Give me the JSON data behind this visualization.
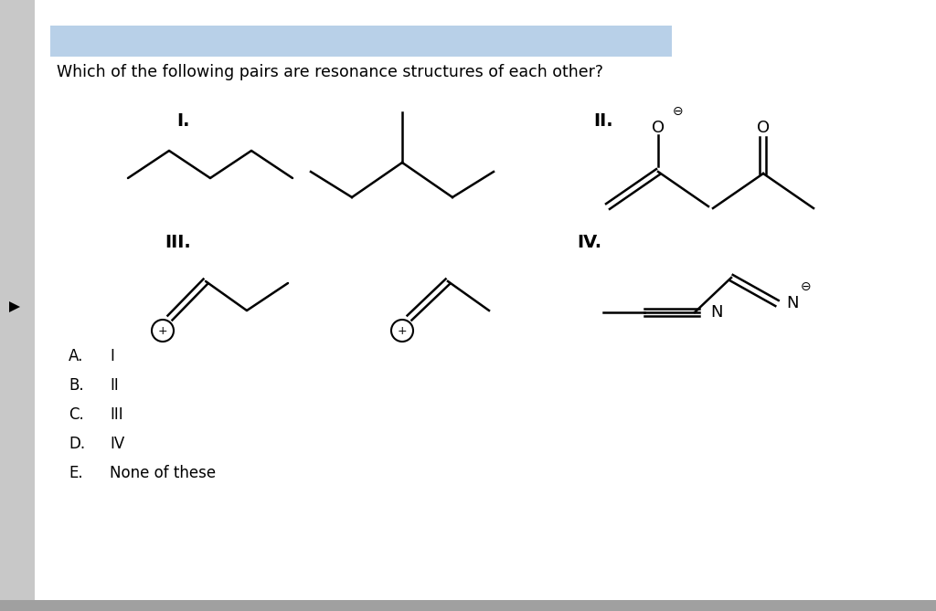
{
  "title": "Which of the following pairs are resonance structures of each other?",
  "title_bg": "#b8d0e8",
  "title_fontsize": 12.5,
  "answer_options": [
    [
      "A.",
      "I"
    ],
    [
      "B.",
      "II"
    ],
    [
      "C.",
      "III"
    ],
    [
      "D.",
      "IV"
    ],
    [
      "E.",
      "None of these"
    ]
  ],
  "bg_color": "#ffffff",
  "left_sidebar_color": "#c8c8c8",
  "line_color": "#000000",
  "line_width": 1.8
}
